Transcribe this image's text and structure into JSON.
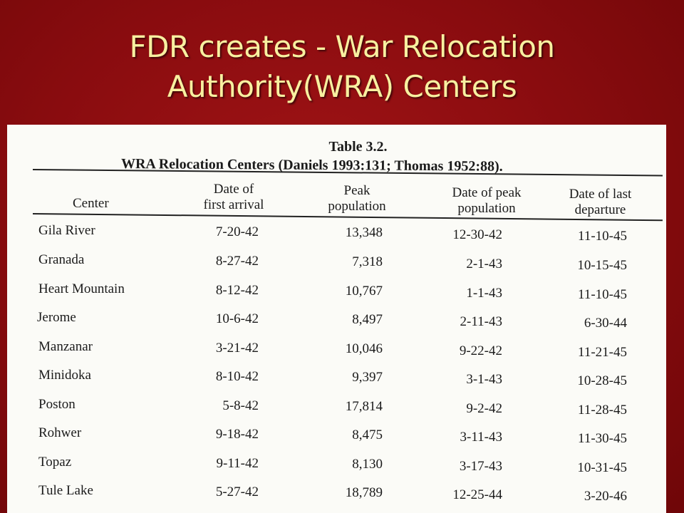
{
  "slide": {
    "title_line1": "FDR creates - War Relocation",
    "title_line2": "Authority(WRA) Centers"
  },
  "table": {
    "caption": "Table 3.2.",
    "subcaption": "WRA Relocation Centers (Daniels 1993:131; Thomas 1952:88).",
    "headers": {
      "center": "Center",
      "arrival_1": "Date of",
      "arrival_2": "first arrival",
      "peak_1": "Peak",
      "peak_2": "population",
      "peakdate_1": "Date of peak",
      "peakdate_2": "population",
      "last_1": "Date of last",
      "last_2": "departure"
    },
    "rows": [
      {
        "center": "Gila River",
        "first_arrival": "7-20-42",
        "peak_population": "13,348",
        "peak_date": "12-30-42",
        "last_departure": "11-10-45"
      },
      {
        "center": "Granada",
        "first_arrival": "8-27-42",
        "peak_population": "7,318",
        "peak_date": "2-1-43",
        "last_departure": "10-15-45"
      },
      {
        "center": "Heart Mountain",
        "first_arrival": "8-12-42",
        "peak_population": "10,767",
        "peak_date": "1-1-43",
        "last_departure": "11-10-45"
      },
      {
        "center": "Jerome",
        "first_arrival": "10-6-42",
        "peak_population": "8,497",
        "peak_date": "2-11-43",
        "last_departure": "6-30-44"
      },
      {
        "center": "Manzanar",
        "first_arrival": "3-21-42",
        "peak_population": "10,046",
        "peak_date": "9-22-42",
        "last_departure": "11-21-45"
      },
      {
        "center": "Minidoka",
        "first_arrival": "8-10-42",
        "peak_population": "9,397",
        "peak_date": "3-1-43",
        "last_departure": "10-28-45"
      },
      {
        "center": "Poston",
        "first_arrival": "5-8-42",
        "peak_population": "17,814",
        "peak_date": "9-2-42",
        "last_departure": "11-28-45"
      },
      {
        "center": "Rohwer",
        "first_arrival": "9-18-42",
        "peak_population": "8,475",
        "peak_date": "3-11-43",
        "last_departure": "11-30-45"
      },
      {
        "center": "Topaz",
        "first_arrival": "9-11-42",
        "peak_population": "8,130",
        "peak_date": "3-17-43",
        "last_departure": "10-31-45"
      },
      {
        "center": "Tule Lake",
        "first_arrival": "5-27-42",
        "peak_population": "18,789",
        "peak_date": "12-25-44",
        "last_departure": "3-20-46"
      }
    ]
  },
  "colors": {
    "background": "#8d0d10",
    "title_text": "#f8f0a0",
    "paper": "#fbfbf7"
  }
}
